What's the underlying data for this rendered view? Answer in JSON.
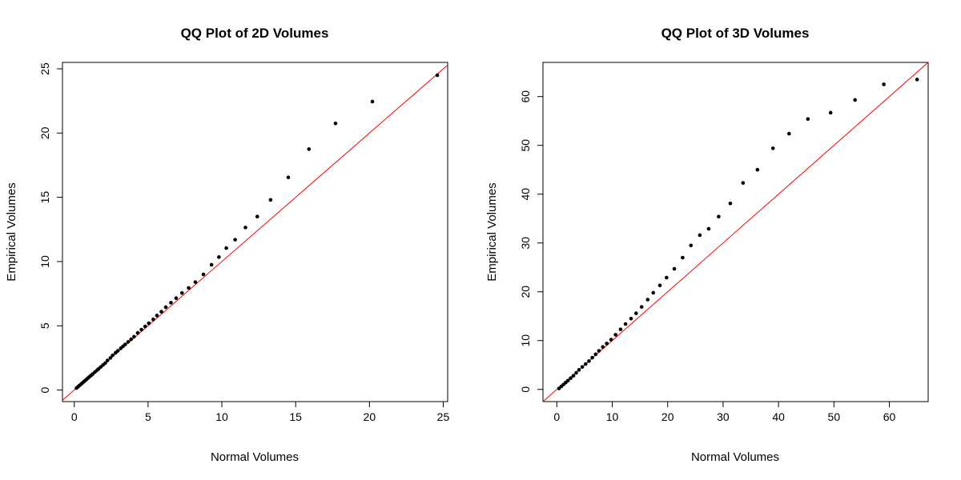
{
  "chart_data": [
    {
      "type": "scatter",
      "title": "QQ Plot of 2D Volumes",
      "xlabel": "Normal Volumes",
      "ylabel": "Empirical Volumes",
      "xlim": [
        -0.8,
        25.3
      ],
      "ylim": [
        -0.9,
        25.5
      ],
      "xticks": [
        0,
        5,
        10,
        15,
        20,
        25
      ],
      "yticks": [
        0,
        5,
        10,
        15,
        20,
        25
      ],
      "ref_line": {
        "intercept": 0,
        "slope": 1,
        "color": "#ff0000"
      },
      "points": [
        [
          0.15,
          0.15
        ],
        [
          0.25,
          0.25
        ],
        [
          0.35,
          0.35
        ],
        [
          0.45,
          0.45
        ],
        [
          0.55,
          0.55
        ],
        [
          0.65,
          0.65
        ],
        [
          0.75,
          0.75
        ],
        [
          0.85,
          0.85
        ],
        [
          0.95,
          0.95
        ],
        [
          1.05,
          1.05
        ],
        [
          1.15,
          1.15
        ],
        [
          1.25,
          1.25
        ],
        [
          1.4,
          1.4
        ],
        [
          1.55,
          1.55
        ],
        [
          1.65,
          1.65
        ],
        [
          1.8,
          1.8
        ],
        [
          1.95,
          1.95
        ],
        [
          2.1,
          2.1
        ],
        [
          2.25,
          2.3
        ],
        [
          2.45,
          2.5
        ],
        [
          2.6,
          2.7
        ],
        [
          2.8,
          2.9
        ],
        [
          2.95,
          3.05
        ],
        [
          3.15,
          3.25
        ],
        [
          3.3,
          3.4
        ],
        [
          3.45,
          3.55
        ],
        [
          3.65,
          3.75
        ],
        [
          3.85,
          3.95
        ],
        [
          4.05,
          4.15
        ],
        [
          4.3,
          4.45
        ],
        [
          4.55,
          4.7
        ],
        [
          4.8,
          4.95
        ],
        [
          5.05,
          5.2
        ],
        [
          5.35,
          5.5
        ],
        [
          5.6,
          5.8
        ],
        [
          5.9,
          6.1
        ],
        [
          6.2,
          6.45
        ],
        [
          6.55,
          6.8
        ],
        [
          6.9,
          7.15
        ],
        [
          7.3,
          7.55
        ],
        [
          7.75,
          7.95
        ],
        [
          8.2,
          8.4
        ],
        [
          8.75,
          9.0
        ],
        [
          9.3,
          9.75
        ],
        [
          9.8,
          10.35
        ],
        [
          10.3,
          11.05
        ],
        [
          10.9,
          11.7
        ],
        [
          11.6,
          12.65
        ],
        [
          12.4,
          13.5
        ],
        [
          13.3,
          14.8
        ],
        [
          14.5,
          16.55
        ],
        [
          15.9,
          18.75
        ],
        [
          17.7,
          20.75
        ],
        [
          20.2,
          22.45
        ],
        [
          24.6,
          24.5
        ]
      ]
    },
    {
      "type": "scatter",
      "title": "QQ Plot of 3D Volumes",
      "xlabel": "Normal Volumes",
      "ylabel": "Empirical Volumes",
      "xlim": [
        -2.5,
        67
      ],
      "ylim": [
        -2.5,
        67
      ],
      "xticks": [
        0,
        10,
        20,
        30,
        40,
        50,
        60
      ],
      "yticks": [
        0,
        10,
        20,
        30,
        40,
        50,
        60
      ],
      "ref_line": {
        "intercept": 0,
        "slope": 1,
        "color": "#ff0000"
      },
      "points": [
        [
          0.4,
          0.2
        ],
        [
          0.8,
          0.6
        ],
        [
          1.2,
          1.0
        ],
        [
          1.6,
          1.4
        ],
        [
          2.0,
          1.8
        ],
        [
          2.5,
          2.3
        ],
        [
          3.0,
          2.8
        ],
        [
          3.5,
          3.4
        ],
        [
          4.0,
          4.0
        ],
        [
          4.6,
          4.6
        ],
        [
          5.2,
          5.2
        ],
        [
          5.8,
          5.8
        ],
        [
          6.4,
          6.5
        ],
        [
          7.0,
          7.2
        ],
        [
          7.6,
          7.9
        ],
        [
          8.3,
          8.7
        ],
        [
          9.0,
          9.4
        ],
        [
          9.8,
          10.2
        ],
        [
          10.6,
          11.2
        ],
        [
          11.5,
          12.3
        ],
        [
          12.4,
          13.4
        ],
        [
          13.4,
          14.5
        ],
        [
          14.3,
          15.6
        ],
        [
          15.3,
          16.9
        ],
        [
          16.4,
          18.4
        ],
        [
          17.4,
          19.8
        ],
        [
          18.6,
          21.3
        ],
        [
          19.8,
          22.9
        ],
        [
          21.2,
          24.7
        ],
        [
          22.7,
          27.0
        ],
        [
          24.2,
          29.5
        ],
        [
          25.8,
          31.6
        ],
        [
          27.4,
          32.9
        ],
        [
          29.2,
          35.4
        ],
        [
          31.3,
          38.1
        ],
        [
          33.6,
          42.3
        ],
        [
          36.2,
          45.0
        ],
        [
          39.0,
          49.4
        ],
        [
          41.9,
          52.4
        ],
        [
          45.3,
          55.4
        ],
        [
          49.4,
          56.7
        ],
        [
          53.8,
          59.3
        ],
        [
          59.0,
          62.5
        ],
        [
          65.0,
          63.5
        ]
      ]
    }
  ]
}
